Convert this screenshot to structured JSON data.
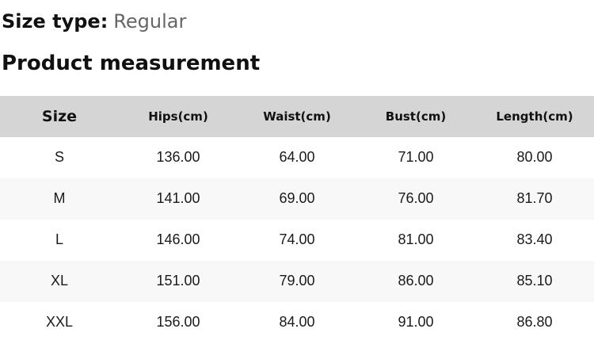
{
  "header": {
    "size_type_label": "Size type:",
    "size_type_value": "Regular",
    "section_title": "Product measurement"
  },
  "table": {
    "columns": [
      "Size",
      "Hips(cm)",
      "Waist(cm)",
      "Bust(cm)",
      "Length(cm)"
    ],
    "rows": [
      [
        "S",
        "136.00",
        "64.00",
        "71.00",
        "80.00"
      ],
      [
        "M",
        "141.00",
        "69.00",
        "76.00",
        "81.70"
      ],
      [
        "L",
        "146.00",
        "74.00",
        "81.00",
        "83.40"
      ],
      [
        "XL",
        "151.00",
        "79.00",
        "86.00",
        "85.10"
      ],
      [
        "XXL",
        "156.00",
        "84.00",
        "91.00",
        "86.80"
      ]
    ]
  },
  "colors": {
    "header_row_background": "#d5d5d5",
    "stripe_row_background": "#f8f8f8",
    "primary_text": "#111111",
    "secondary_text": "#666666"
  }
}
